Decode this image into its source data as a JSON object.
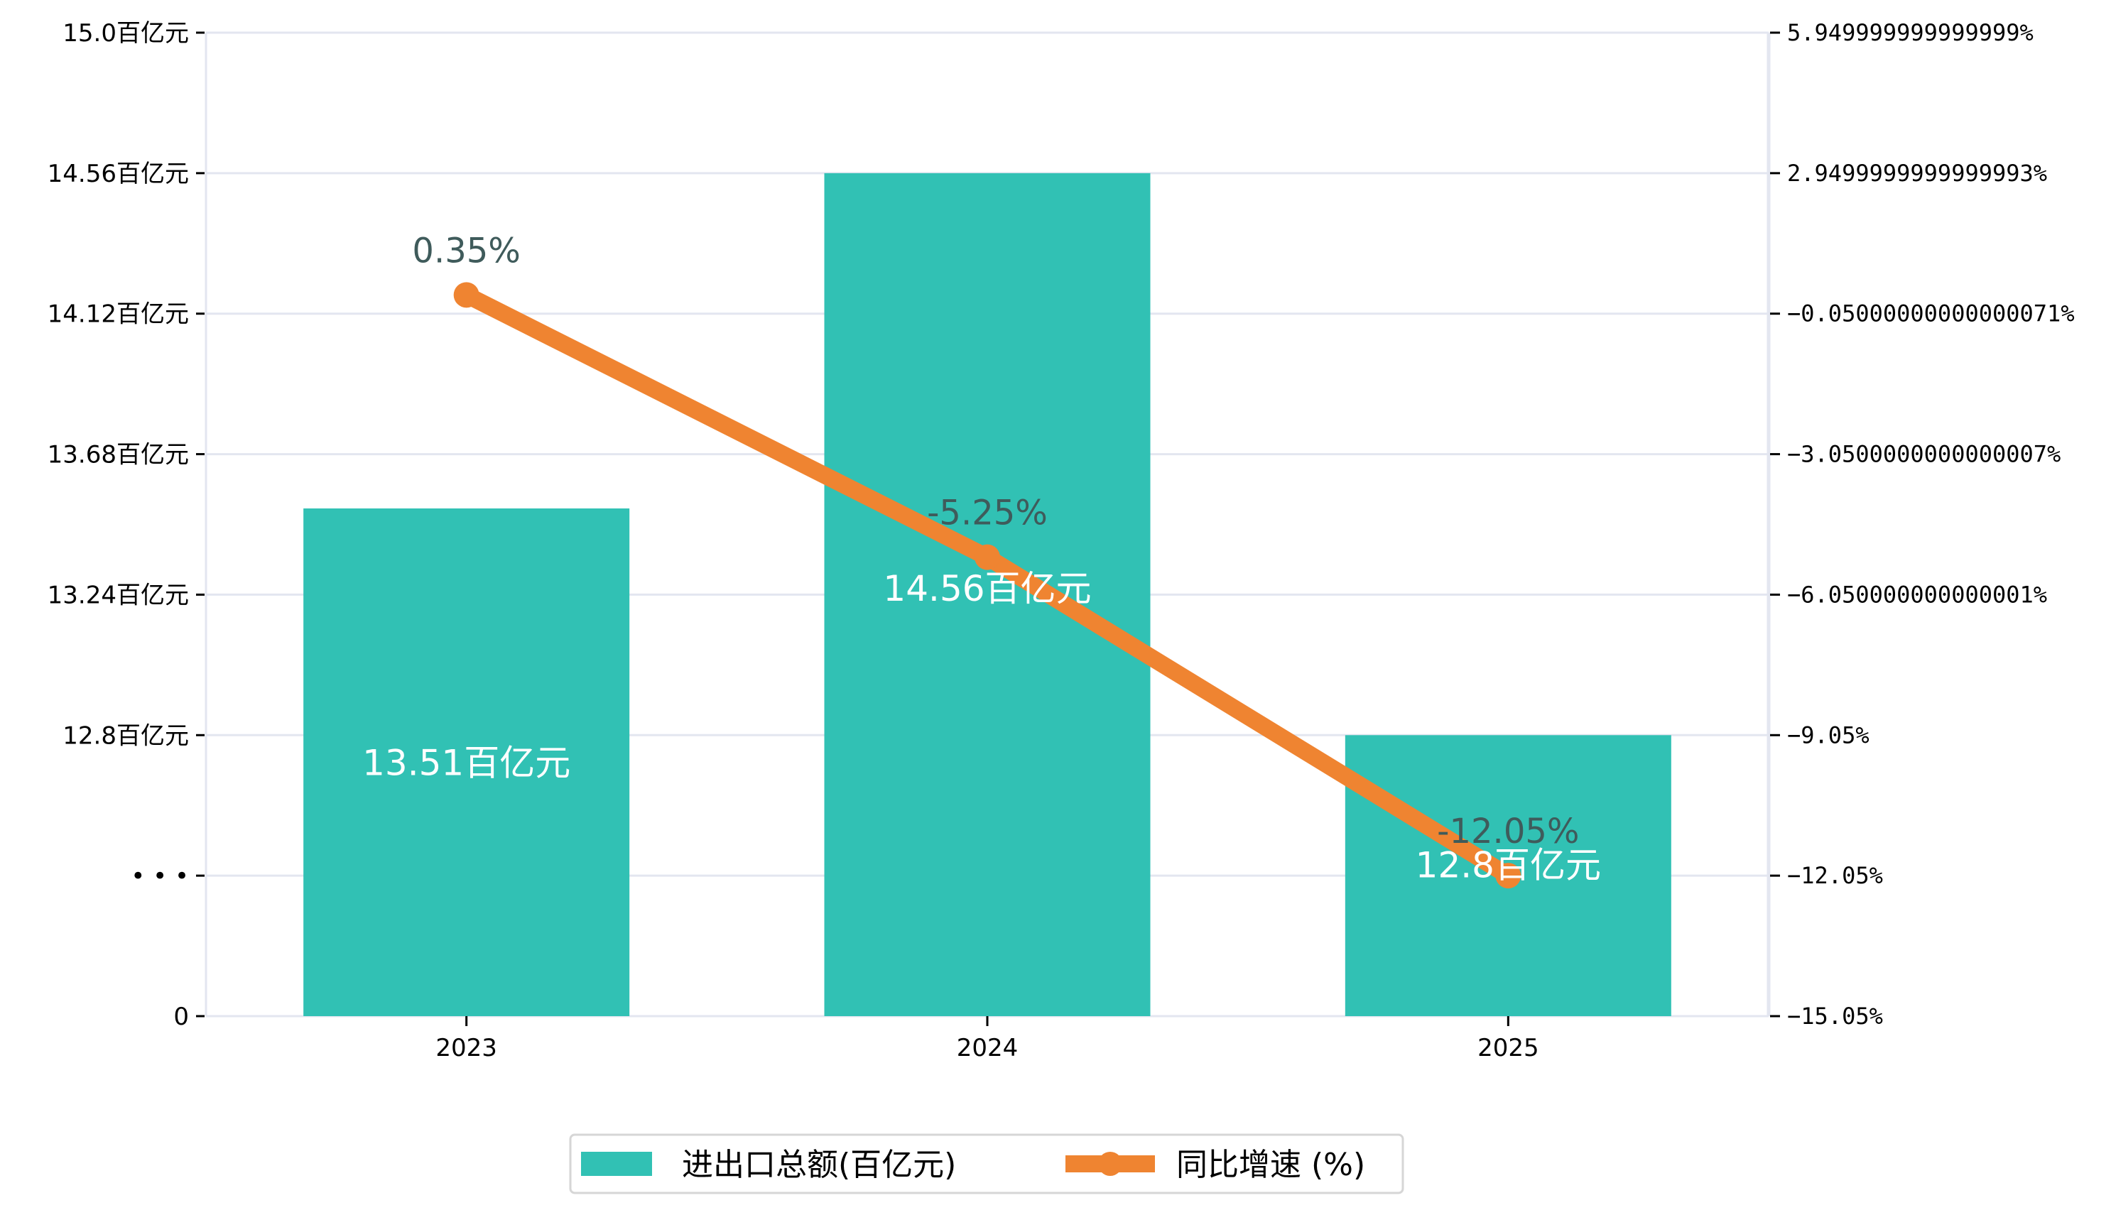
{
  "chart_data": {
    "type": "bar+line",
    "categories": [
      "2023",
      "2024",
      "2025"
    ],
    "series": [
      {
        "name": "进出口总额(百亿元)",
        "type": "bar",
        "axis": "left",
        "values": [
          13.51,
          14.56,
          12.8
        ],
        "labels": [
          "13.51百亿元",
          "14.56百亿元",
          "12.8百亿元"
        ],
        "color": "#31C1B4"
      },
      {
        "name": "同比增速 (%)",
        "type": "line",
        "axis": "right",
        "values": [
          0.35,
          -5.25,
          -12.05
        ],
        "labels": [
          "0.35%",
          "-5.25%",
          "-12.05%"
        ],
        "color": "#EF8431"
      }
    ],
    "left_axis": {
      "ylim": [
        11.92,
        15.0
      ],
      "broken": true,
      "tick_labels": [
        "0",
        "• • •",
        "12.8百亿元",
        "13.24百亿元",
        "13.68百亿元",
        "14.12百亿元",
        "14.56百亿元",
        "15.0百亿元"
      ]
    },
    "right_axis": {
      "ylim": [
        -15.05,
        5.95
      ],
      "tick_labels": [
        "−15.05%",
        "−12.05%",
        "−9.05%",
        "−6.050000000000001%",
        "−3.0500000000000007%",
        "−0.05000000000000071%",
        "2.9499999999999993%",
        "5.949999999999999%"
      ]
    },
    "grid": true,
    "legend_position": "bottom-center",
    "label_color": "#3f5b5b",
    "grid_color": "#e3e6f0"
  }
}
